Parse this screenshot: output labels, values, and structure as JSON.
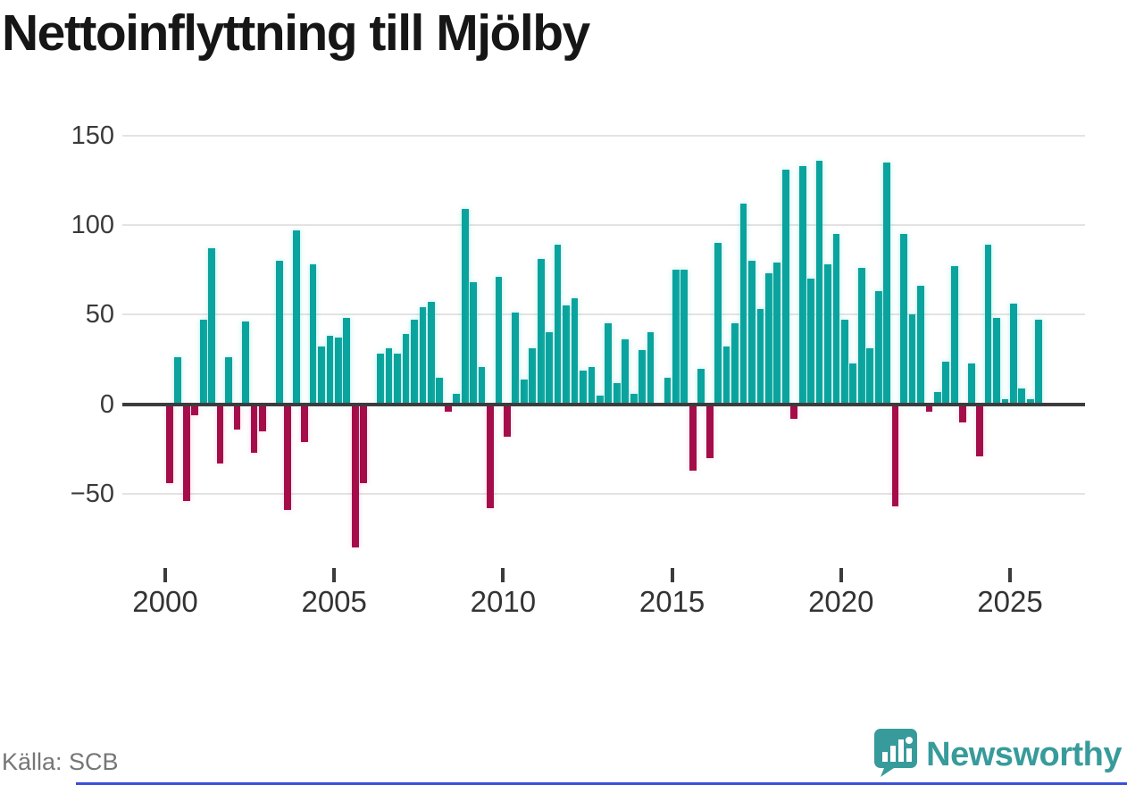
{
  "title": "Nettoinflyttning till Mjölby",
  "source": "Källa: SCB",
  "logo": {
    "text": "Newsworthy"
  },
  "colors": {
    "positive": "#0AA39D",
    "negative": "#A50D4A",
    "grid": "#E3E3E3",
    "axis": "#3C3C3C",
    "title": "#161616",
    "tick_label": "#333333",
    "y_label": "#3A3A3A",
    "source": "#767676",
    "logo": "#389B9B",
    "bottom_strip": "#3B4FD8"
  },
  "chart_data": {
    "type": "bar",
    "title": "Nettoinflyttning till Mjölby",
    "xlabel": "",
    "ylabel": "",
    "grid": true,
    "legend": false,
    "x_ticks": [
      2000,
      2005,
      2010,
      2015,
      2020,
      2025
    ],
    "y_ticks": [
      150,
      100,
      50,
      0,
      -50
    ],
    "ylim": [
      -85,
      155
    ],
    "period": "quarterly",
    "series_by_year": [
      {
        "year": 2000,
        "values": [
          -43,
          26,
          -53,
          -5
        ]
      },
      {
        "year": 2001,
        "values": [
          47,
          87,
          -32,
          26
        ]
      },
      {
        "year": 2002,
        "values": [
          -13,
          46,
          -26,
          -14
        ]
      },
      {
        "year": 2003,
        "values": [
          0,
          80,
          -58,
          97
        ]
      },
      {
        "year": 2004,
        "values": [
          -20,
          78,
          32,
          38
        ]
      },
      {
        "year": 2005,
        "values": [
          37,
          48,
          -79,
          -43
        ]
      },
      {
        "year": 2006,
        "values": [
          0,
          28,
          31,
          28
        ]
      },
      {
        "year": 2007,
        "values": [
          39,
          47,
          54,
          57
        ]
      },
      {
        "year": 2008,
        "values": [
          15,
          -3,
          6,
          109
        ]
      },
      {
        "year": 2009,
        "values": [
          68,
          21,
          -57,
          71
        ]
      },
      {
        "year": 2010,
        "values": [
          -17,
          51,
          14,
          31
        ]
      },
      {
        "year": 2011,
        "values": [
          81,
          40,
          89,
          55
        ]
      },
      {
        "year": 2012,
        "values": [
          59,
          19,
          21,
          5
        ]
      },
      {
        "year": 2013,
        "values": [
          45,
          12,
          36,
          6
        ]
      },
      {
        "year": 2014,
        "values": [
          30,
          40,
          0,
          15
        ]
      },
      {
        "year": 2015,
        "values": [
          75,
          75,
          -36,
          20
        ]
      },
      {
        "year": 2016,
        "values": [
          -29,
          90,
          32,
          45
        ]
      },
      {
        "year": 2017,
        "values": [
          112,
          80,
          53,
          73
        ]
      },
      {
        "year": 2018,
        "values": [
          79,
          131,
          -7,
          133
        ]
      },
      {
        "year": 2019,
        "values": [
          70,
          136,
          78,
          95
        ]
      },
      {
        "year": 2020,
        "values": [
          47,
          23,
          76,
          31
        ]
      },
      {
        "year": 2021,
        "values": [
          63,
          135,
          -56,
          95
        ]
      },
      {
        "year": 2022,
        "values": [
          50,
          66,
          -3,
          7
        ]
      },
      {
        "year": 2023,
        "values": [
          24,
          77,
          -9,
          23
        ]
      },
      {
        "year": 2024,
        "values": [
          -28,
          89,
          48,
          3
        ]
      },
      {
        "year": 2025,
        "values": [
          56,
          9,
          3,
          47
        ]
      }
    ]
  }
}
